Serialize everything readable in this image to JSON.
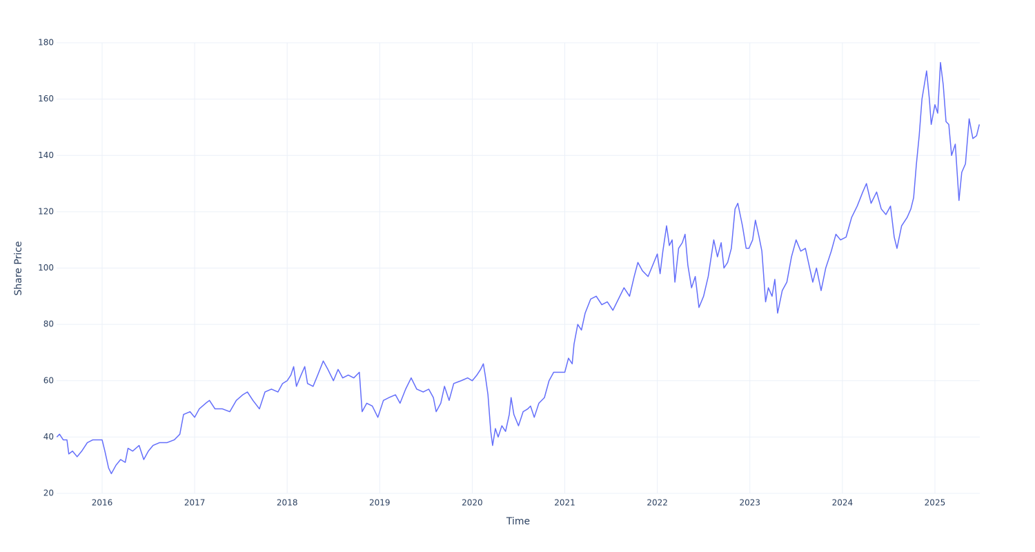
{
  "chart_data": {
    "type": "line",
    "x_label": "Time",
    "y_label": "Share Price",
    "x": [
      2015.51,
      2015.54,
      2015.58,
      2015.62,
      2015.64,
      2015.68,
      2015.73,
      2015.78,
      2015.84,
      2015.9,
      2015.95,
      2016.0,
      2016.03,
      2016.07,
      2016.1,
      2016.15,
      2016.2,
      2016.25,
      2016.28,
      2016.33,
      2016.4,
      2016.45,
      2016.5,
      2016.55,
      2016.62,
      2016.7,
      2016.78,
      2016.84,
      2016.88,
      2016.95,
      2017.0,
      2017.05,
      2017.12,
      2017.16,
      2017.22,
      2017.3,
      2017.38,
      2017.45,
      2017.52,
      2017.57,
      2017.63,
      2017.7,
      2017.76,
      2017.83,
      2017.9,
      2017.95,
      2018.0,
      2018.04,
      2018.07,
      2018.1,
      2018.15,
      2018.19,
      2018.22,
      2018.28,
      2018.33,
      2018.39,
      2018.44,
      2018.5,
      2018.55,
      2018.6,
      2018.66,
      2018.72,
      2018.78,
      2018.81,
      2018.86,
      2018.92,
      2018.98,
      2019.04,
      2019.1,
      2019.17,
      2019.22,
      2019.28,
      2019.34,
      2019.4,
      2019.47,
      2019.53,
      2019.58,
      2019.61,
      2019.66,
      2019.7,
      2019.75,
      2019.8,
      2019.88,
      2019.95,
      2020.0,
      2020.05,
      2020.09,
      2020.12,
      2020.14,
      2020.17,
      2020.2,
      2020.22,
      2020.25,
      2020.28,
      2020.32,
      2020.36,
      2020.4,
      2020.42,
      2020.45,
      2020.5,
      2020.55,
      2020.6,
      2020.63,
      2020.67,
      2020.72,
      2020.78,
      2020.83,
      2020.88,
      2020.95,
      2021.0,
      2021.04,
      2021.08,
      2021.1,
      2021.14,
      2021.18,
      2021.22,
      2021.28,
      2021.34,
      2021.4,
      2021.46,
      2021.52,
      2021.58,
      2021.64,
      2021.7,
      2021.75,
      2021.79,
      2021.84,
      2021.9,
      2021.95,
      2022.0,
      2022.03,
      2022.06,
      2022.1,
      2022.13,
      2022.16,
      2022.19,
      2022.23,
      2022.27,
      2022.3,
      2022.33,
      2022.37,
      2022.41,
      2022.45,
      2022.5,
      2022.55,
      2022.61,
      2022.65,
      2022.69,
      2022.72,
      2022.76,
      2022.8,
      2022.84,
      2022.87,
      2022.92,
      2022.96,
      2022.99,
      2023.03,
      2023.06,
      2023.1,
      2023.13,
      2023.17,
      2023.2,
      2023.24,
      2023.27,
      2023.3,
      2023.35,
      2023.4,
      2023.45,
      2023.5,
      2023.55,
      2023.6,
      2023.64,
      2023.68,
      2023.72,
      2023.77,
      2023.82,
      2023.88,
      2023.93,
      2023.98,
      2024.04,
      2024.1,
      2024.16,
      2024.22,
      2024.26,
      2024.31,
      2024.37,
      2024.42,
      2024.47,
      2024.52,
      2024.56,
      2024.59,
      2024.64,
      2024.7,
      2024.74,
      2024.77,
      2024.8,
      2024.83,
      2024.86,
      2024.91,
      2024.94,
      2024.96,
      2025.0,
      2025.03,
      2025.06,
      2025.09,
      2025.12,
      2025.15,
      2025.18,
      2025.22,
      2025.26,
      2025.29,
      2025.33,
      2025.37,
      2025.41,
      2025.45,
      2025.48
    ],
    "series": [
      {
        "color": "#636efa",
        "values": [
          40,
          41,
          39,
          39,
          34,
          35,
          33,
          35,
          38,
          39,
          39,
          39,
          35,
          29,
          27,
          30,
          32,
          31,
          36,
          35,
          37,
          32,
          35,
          37,
          38,
          38,
          39,
          41,
          48,
          49,
          47,
          50,
          52,
          53,
          50,
          50,
          49,
          53,
          55,
          56,
          53,
          50,
          56,
          57,
          56,
          59,
          60,
          62,
          65,
          58,
          62,
          65,
          59,
          58,
          62,
          67,
          64,
          60,
          64,
          61,
          62,
          61,
          63,
          49,
          52,
          51,
          47,
          53,
          54,
          55,
          52,
          57,
          61,
          57,
          56,
          57,
          54,
          49,
          52,
          58,
          53,
          59,
          60,
          61,
          60,
          62,
          64,
          66,
          62,
          55,
          42,
          37,
          43,
          40,
          44,
          42,
          48,
          54,
          48,
          44,
          49,
          50,
          51,
          47,
          52,
          54,
          60,
          63,
          63,
          63,
          68,
          66,
          73,
          80,
          78,
          84,
          89,
          90,
          87,
          88,
          85,
          89,
          93,
          90,
          97,
          102,
          99,
          97,
          101,
          105,
          98,
          106,
          115,
          108,
          110,
          95,
          107,
          109,
          112,
          101,
          93,
          97,
          86,
          90,
          97,
          110,
          104,
          109,
          100,
          102,
          107,
          121,
          123,
          115,
          107,
          107,
          110,
          117,
          111,
          106,
          88,
          93,
          90,
          96,
          84,
          92,
          95,
          104,
          110,
          106,
          107,
          101,
          95,
          100,
          92,
          100,
          106,
          112,
          110,
          111,
          118,
          122,
          127,
          130,
          123,
          127,
          121,
          119,
          122,
          111,
          107,
          115,
          118,
          121,
          125,
          137,
          147,
          160,
          170,
          160,
          151,
          158,
          155,
          173,
          165,
          152,
          151,
          140,
          144,
          124,
          134,
          137,
          153,
          146,
          147,
          151
        ]
      }
    ],
    "xlim": [
      2015.508,
      2025.485
    ],
    "xticks": [
      2016,
      2017,
      2018,
      2019,
      2020,
      2021,
      2022,
      2023,
      2024,
      2025
    ],
    "ylim": [
      20,
      180
    ],
    "yticks": [
      20,
      40,
      60,
      80,
      100,
      120,
      140,
      160,
      180
    ],
    "grid": true
  }
}
